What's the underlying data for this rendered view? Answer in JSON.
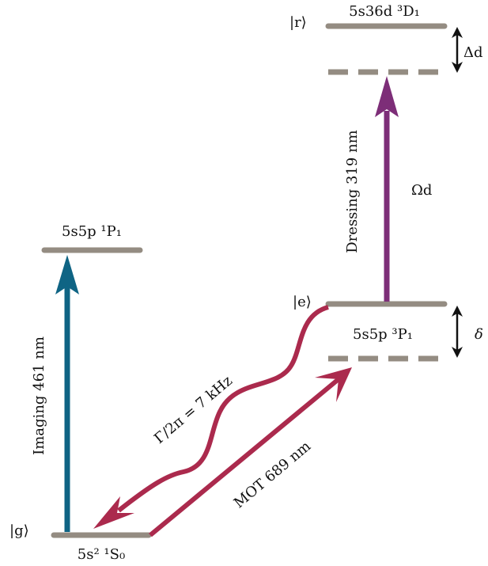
{
  "colors": {
    "level": "#948c82",
    "imaging": "#0f6484",
    "mot": "#ab2a4d",
    "dressing": "#7d2e78",
    "detuning_arrow": "#111111",
    "text": "#111111"
  },
  "levels": {
    "ground": {
      "name": "5s² ¹S₀",
      "ket": "|g⟩"
    },
    "p1_singlet": {
      "name": "5s5p ¹P₁"
    },
    "p1_triplet": {
      "name": "5s5p ³P₁",
      "ket": "|e⟩"
    },
    "rydberg": {
      "name": "5s36d ³D₁",
      "ket": "|r⟩"
    }
  },
  "transitions": {
    "imaging": {
      "label": "Imaging 461 nm"
    },
    "mot": {
      "label": "MOT 689 nm"
    },
    "decay": {
      "label": "Γ/2π = 7 kHz"
    },
    "dressing": {
      "label": "Dressing 319 nm",
      "rabi": "Ωd"
    }
  },
  "detunings": {
    "rydberg": "Δd",
    "triplet": "δ"
  }
}
